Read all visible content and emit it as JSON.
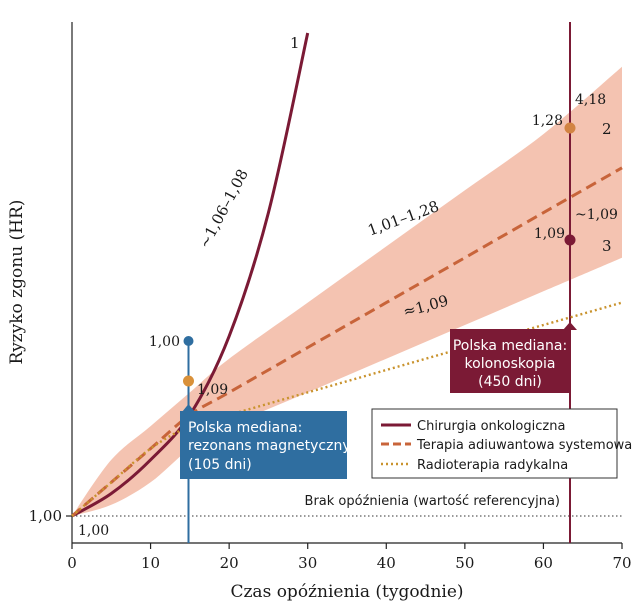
{
  "chart_data": {
    "type": "line",
    "xlabel": "Czas opóźnienia (tygodnie)",
    "ylabel": "Ryzyko zgonu (HR)",
    "xlim": [
      0,
      70
    ],
    "x_ticks": [
      "0",
      "10",
      "20",
      "30",
      "40",
      "50",
      "60",
      "70"
    ],
    "y_tick_labels": [
      "1,00"
    ],
    "grid": false,
    "legend_position": "lower-right",
    "series": [
      {
        "name": "Chirurgia onkologiczna",
        "color": "#7b1a35",
        "style": "solid",
        "curve_number": "1",
        "slope_label": "~1,06–1,08",
        "x": [
          0,
          5,
          10,
          15,
          20,
          25,
          30
        ],
        "y": [
          1.0,
          1.02,
          1.05,
          1.09,
          1.16,
          1.27,
          1.43
        ]
      },
      {
        "name": "Terapia adiuwantowa systemowa",
        "color": "#c8643a",
        "style": "dashed",
        "curve_number": "2",
        "slope_label": "1,01–1,28",
        "end_label": "4,18",
        "x": [
          0,
          5,
          10,
          15,
          20,
          30,
          40,
          50,
          60,
          70
        ],
        "y": [
          1.0,
          1.03,
          1.06,
          1.09,
          1.11,
          1.15,
          1.19,
          1.23,
          1.27,
          1.31
        ],
        "band_upper": [
          1.0,
          1.05,
          1.08,
          1.11,
          1.14,
          1.19,
          1.24,
          1.29,
          1.34,
          1.4
        ],
        "band_lower": [
          1.0,
          1.01,
          1.03,
          1.06,
          1.08,
          1.11,
          1.14,
          1.17,
          1.2,
          1.23
        ]
      },
      {
        "name": "Radioterapia radykalna",
        "color": "#c9932e",
        "style": "dotted",
        "curve_number": "3",
        "slope_label": "≈1,09",
        "end_label": "~1,09",
        "x": [
          0,
          5,
          10,
          15,
          20,
          30,
          40,
          50,
          60,
          70
        ],
        "y": [
          1.0,
          1.03,
          1.06,
          1.08,
          1.09,
          1.11,
          1.13,
          1.15,
          1.17,
          1.19
        ]
      }
    ],
    "reference_line": {
      "y": 1.0,
      "label": "Brak opóźnienia (wartość referencyjna)"
    },
    "annotations": [
      {
        "x": 0,
        "y": 1.0,
        "text": "1,00"
      },
      {
        "x": 14.8,
        "y": 1.09,
        "text": "1,00",
        "color": "#2f6ea0"
      },
      {
        "x": 14.8,
        "y": 1.07,
        "text": "1,09",
        "color": "#c9932e"
      },
      {
        "x": 63.5,
        "y": 1.26,
        "text": "1,28",
        "color": "#c8643a"
      },
      {
        "x": 63.5,
        "y": 1.17,
        "text": "1,09",
        "color": "#7b1a35"
      }
    ],
    "vertical_markers": [
      {
        "x": 14.8,
        "color": "#2f6ea0",
        "label_lines": [
          "Polska mediana:",
          "rezonans magnetyczny",
          "(105 dni)"
        ]
      },
      {
        "x": 63.5,
        "color": "#7b1a35",
        "label_lines": [
          "Polska mediana:",
          "kolonoskopia",
          "(450 dni)"
        ]
      }
    ]
  }
}
